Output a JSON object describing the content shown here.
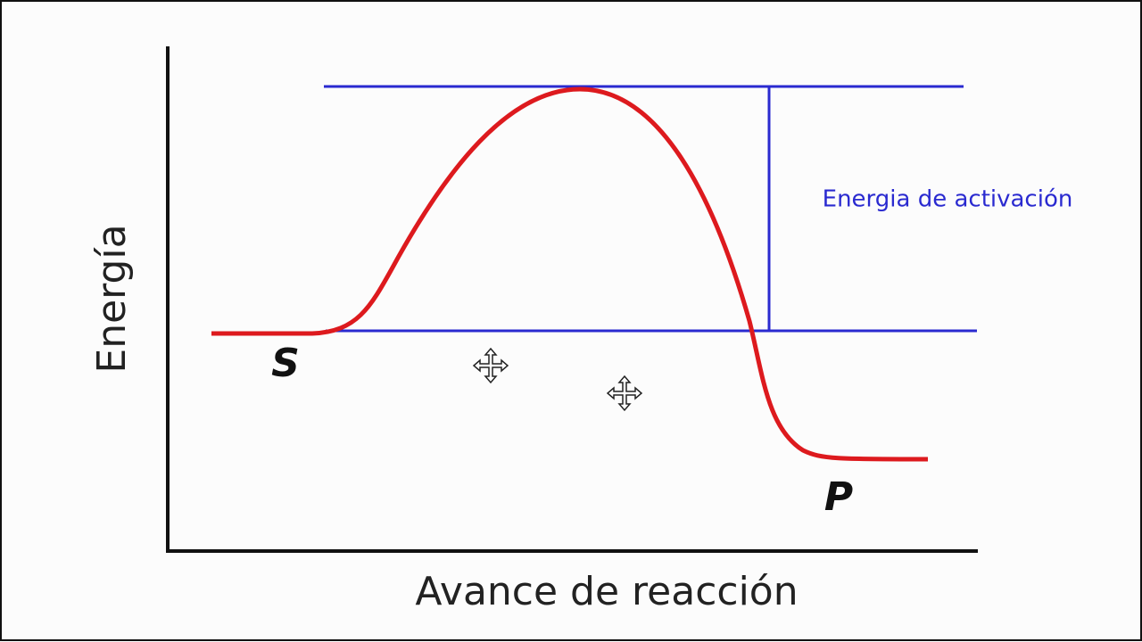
{
  "axes": {
    "y_label": "Energía",
    "x_label": "Avance de reacción"
  },
  "labels": {
    "substrate": "S",
    "product": "P",
    "activation": "Energia de activación"
  }
}
